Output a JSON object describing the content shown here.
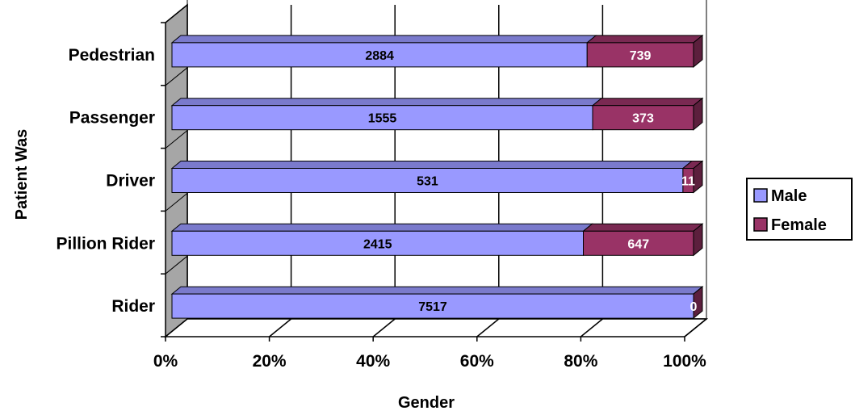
{
  "chart_data": {
    "type": "bar",
    "orientation": "horizontal",
    "stacking": "percent",
    "style": "3d",
    "categories": [
      "Rider",
      "Pillion Rider",
      "Driver",
      "Passenger",
      "Pedestrian"
    ],
    "series": [
      {
        "name": "Male",
        "values": [
          7517,
          2415,
          531,
          1555,
          2884
        ],
        "color": "#9999ff"
      },
      {
        "name": "Female",
        "values": [
          0,
          647,
          11,
          373,
          739
        ],
        "color": "#993366"
      }
    ],
    "xlabel": "Gender",
    "ylabel": "Patient Was",
    "xlim": [
      0,
      100
    ],
    "xticks": [
      "0%",
      "20%",
      "40%",
      "60%",
      "80%",
      "100%"
    ],
    "grid": true,
    "legend_position": "right",
    "value_label_colors": {
      "Male": "#000000",
      "Female": "#ffffff"
    }
  }
}
